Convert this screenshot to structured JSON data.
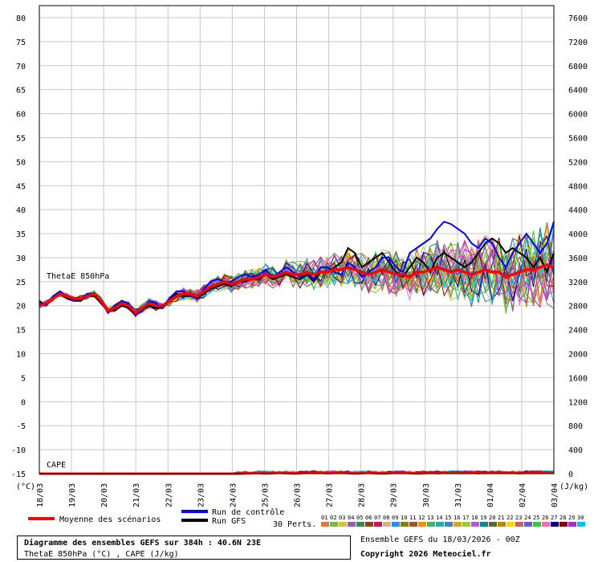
{
  "chart_data": {
    "type": "line",
    "title": "Diagramme des ensembles GEFS sur 384h : 40.6N 23E",
    "subtitle": "ThetaE 850hPa (°C) , CAPE (J/kg)",
    "left_axis": {
      "unit": "(°C)",
      "ticks": [
        "80",
        "75",
        "70",
        "65",
        "60",
        "55",
        "50",
        "45",
        "40",
        "35",
        "30",
        "25",
        "20",
        "15",
        "10",
        "5",
        "0",
        "-5",
        "-10",
        "-15"
      ],
      "range": [
        -15,
        80
      ]
    },
    "right_axis": {
      "unit": "(J/kg)",
      "ticks": [
        "7600",
        "7200",
        "6800",
        "6400",
        "6000",
        "5600",
        "5200",
        "4800",
        "4400",
        "4000",
        "3600",
        "3200",
        "2800",
        "2400",
        "2000",
        "1600",
        "1200",
        "800",
        "400",
        "0"
      ],
      "range": [
        0,
        7600
      ]
    },
    "x_ticks": [
      "18/03",
      "19/03",
      "20/03",
      "21/03",
      "22/03",
      "23/03",
      "24/03",
      "25/03",
      "26/03",
      "27/03",
      "28/03",
      "29/03",
      "30/03",
      "31/03",
      "01/04",
      "02/04",
      "03/04"
    ],
    "grid": true,
    "panel_labels": {
      "thetae": "ThetaE 850hPa",
      "cape": "CAPE"
    },
    "thetae_mean": [
      20,
      20.5,
      21.5,
      22.5,
      22,
      21.5,
      21.5,
      22,
      22.5,
      21,
      19,
      19.5,
      20.5,
      20,
      18.5,
      19.5,
      20.5,
      20,
      20,
      21,
      22,
      22.5,
      22.5,
      22,
      23,
      24,
      24.5,
      25,
      24.5,
      25,
      25.5,
      25.5,
      26,
      26.5,
      26,
      26.5,
      27,
      26.5,
      26.5,
      27,
      26.5,
      27,
      27,
      27.5,
      27.5,
      28,
      27.5,
      27,
      26.5,
      27,
      27.5,
      27,
      26.5,
      26.5,
      26,
      27,
      27,
      27.5,
      28,
      27.5,
      27,
      27.5,
      27,
      26.5,
      27,
      27.5,
      27,
      27,
      26,
      26.5,
      27,
      27.5,
      27.5,
      28,
      28.5,
      28
    ],
    "thetae_control": [
      20.5,
      20,
      22,
      23,
      22,
      21,
      21.5,
      22.5,
      22.5,
      21,
      18.5,
      20,
      21,
      20.5,
      18,
      19,
      21,
      20.5,
      19.5,
      21.5,
      23,
      23,
      22,
      21.5,
      23.5,
      25,
      25.5,
      25,
      25,
      26,
      26.5,
      26,
      26.5,
      27.5,
      26,
      27,
      28,
      27,
      26,
      27,
      25.5,
      28,
      28,
      27,
      26.5,
      29,
      28,
      26,
      27,
      28,
      30,
      30,
      28,
      27,
      31,
      32,
      33,
      34,
      36,
      37.5,
      37,
      36,
      35,
      33,
      32,
      34,
      33,
      30,
      28,
      31,
      33,
      35,
      33,
      31,
      33,
      37.5
    ],
    "thetae_gfs": [
      21,
      20,
      22,
      22.5,
      21.5,
      21,
      21,
      22,
      22,
      20.5,
      19,
      19,
      20,
      19.5,
      18,
      19,
      20,
      19.5,
      19.5,
      21,
      22.5,
      22,
      22,
      21.5,
      22.5,
      23.5,
      24,
      24.5,
      24,
      25,
      25,
      25.5,
      25.5,
      26.5,
      25.5,
      26,
      26.5,
      26,
      25.5,
      26.5,
      25,
      27,
      27,
      28,
      29,
      32,
      31,
      28,
      29,
      30,
      31,
      29,
      27,
      26,
      28,
      30,
      29,
      27,
      30,
      31,
      30,
      29,
      28,
      29,
      31,
      33,
      34,
      33,
      31,
      32,
      31,
      30,
      28,
      30,
      27,
      31
    ],
    "cape_mean": [
      0,
      0,
      0,
      0,
      0,
      0,
      0,
      0,
      0,
      0,
      0,
      0,
      0,
      0,
      0,
      0,
      0,
      0,
      0,
      0,
      0,
      0,
      0,
      0,
      0,
      0,
      0,
      0,
      0,
      0,
      5,
      10,
      10,
      5,
      10,
      15,
      10,
      5,
      10,
      15,
      20,
      15,
      10,
      15,
      20,
      10,
      5,
      10,
      15,
      10,
      5,
      10,
      15,
      20,
      10,
      5,
      10,
      15,
      10,
      15,
      20,
      25,
      20,
      15,
      10,
      15,
      20,
      25,
      20,
      15,
      10,
      15,
      20,
      25,
      20,
      15
    ],
    "ensemble_count_label": "30 Perts.",
    "members": [
      "01",
      "02",
      "03",
      "04",
      "05",
      "06",
      "07",
      "08",
      "09",
      "10",
      "11",
      "12",
      "13",
      "14",
      "15",
      "16",
      "17",
      "18",
      "19",
      "20",
      "21",
      "22",
      "23",
      "24",
      "25",
      "26",
      "27",
      "28",
      "29",
      "30"
    ],
    "member_colors": [
      "#e8783a",
      "#6fbf3f",
      "#d9c23a",
      "#9b59b6",
      "#2e8b57",
      "#8b4513",
      "#c2185b",
      "#d2b48c",
      "#1e90ff",
      "#808000",
      "#a0522d",
      "#ff8c00",
      "#3cb371",
      "#20b2aa",
      "#4682b4",
      "#daa520",
      "#9acd32",
      "#ba55d3",
      "#008b8b",
      "#556b2f",
      "#b8860b",
      "#ffd700",
      "#cd5c5c",
      "#6a5acd",
      "#32cd32",
      "#ff69b4",
      "#00008b",
      "#8b0000",
      "#9932cc",
      "#00bfff"
    ],
    "legend": {
      "mean": {
        "label": "Moyenne des scénarios",
        "color": "#ff0000"
      },
      "control": {
        "label": "Run de contrôle",
        "color": "#0000ff"
      },
      "gfs": {
        "label": "Run GFS",
        "color": "#000000"
      }
    }
  },
  "footer": {
    "title": "Diagramme des ensembles GEFS sur 384h : 40.6N 23E",
    "subtitle": "ThetaE 850hPa (°C) , CAPE (J/kg)",
    "run_info": "Ensemble GEFS du 18/03/2026 - 00Z",
    "copyright": "Copyright 2026 Meteociel.fr"
  }
}
